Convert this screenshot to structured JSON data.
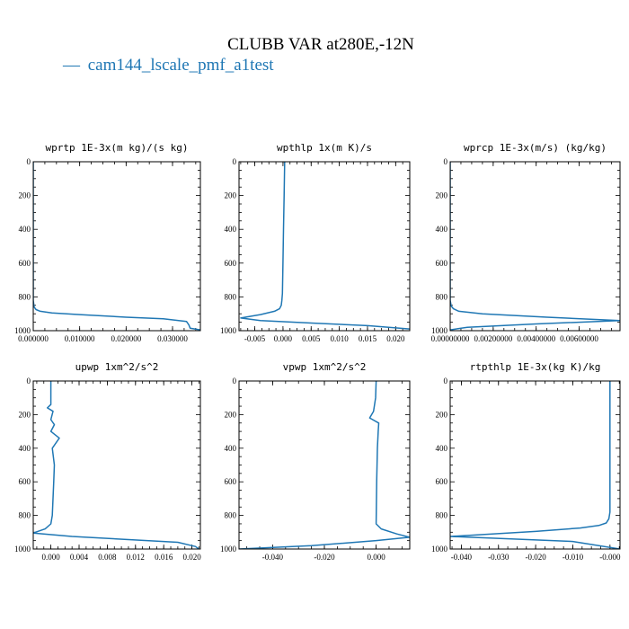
{
  "figure": {
    "title": "CLUBB VAR at280E,-12N",
    "legend": [
      {
        "label": "cam144_lscale_pmf_a1test",
        "line_symbol": "—",
        "color": "#1f77b4"
      }
    ]
  },
  "chart_data": [
    {
      "type": "line",
      "title": "wprtp  1E-3x(m kg)/(s kg)",
      "xlim": [
        0,
        0.036
      ],
      "ylim": [
        1000,
        0
      ],
      "xticks": [
        0,
        0.01,
        0.02,
        0.03
      ],
      "xtick_labels": [
        "0.000000",
        "0.010000",
        "0.020000",
        "0.030000"
      ],
      "yticks": [
        0,
        200,
        400,
        600,
        800,
        1000
      ],
      "ytick_labels": [
        "0",
        "200",
        "400",
        "600",
        "800",
        "1000"
      ],
      "series": [
        {
          "color": "#1f77b4",
          "x": [
            0,
            0,
            0,
            0.0002,
            0.0006,
            0.0015,
            0.004,
            0.01,
            0.02,
            0.028,
            0.033,
            0.0335,
            0.0338,
            0.036
          ],
          "y": [
            0,
            500,
            820,
            860,
            875,
            885,
            895,
            905,
            920,
            930,
            945,
            965,
            985,
            995
          ]
        }
      ]
    },
    {
      "type": "line",
      "title": "wpthlp  1x(m K)/s",
      "xlim": [
        -0.0078,
        0.0225
      ],
      "ylim": [
        1000,
        0
      ],
      "xticks": [
        -0.005,
        0,
        0.005,
        0.01,
        0.015,
        0.02
      ],
      "xtick_labels": [
        "-0.005",
        "0.000",
        "0.005",
        "0.010",
        "0.015",
        "0.020"
      ],
      "yticks": [
        0,
        200,
        400,
        600,
        800,
        1000
      ],
      "ytick_labels": [
        "0",
        "200",
        "400",
        "600",
        "800",
        "1000"
      ],
      "series": [
        {
          "color": "#1f77b4",
          "x": [
            0.0003,
            0.0002,
            0.0001,
            0,
            -0.0001,
            -0.0002,
            -0.0003,
            -0.0006,
            -0.0015,
            -0.004,
            -0.0075,
            -0.004,
            0.005,
            0.015,
            0.0225
          ],
          "y": [
            0,
            200,
            400,
            600,
            780,
            820,
            850,
            870,
            885,
            905,
            925,
            940,
            955,
            970,
            990
          ]
        }
      ]
    },
    {
      "type": "line",
      "title": "wprcp  1E-3x(m/s) (kg/kg)",
      "xlim": [
        0,
        0.0079
      ],
      "ylim": [
        1000,
        0
      ],
      "xticks": [
        0,
        0.002,
        0.004,
        0.006
      ],
      "xtick_labels": [
        "0.00000000",
        "0.00200000",
        "0.00400000",
        "0.00600000"
      ],
      "yticks": [
        0,
        200,
        400,
        600,
        800,
        1000
      ],
      "ytick_labels": [
        "0",
        "200",
        "400",
        "600",
        "800",
        "1000"
      ],
      "series": [
        {
          "color": "#1f77b4",
          "x": [
            0,
            0,
            0,
            5e-05,
            0.00015,
            0.0004,
            0.0015,
            0.0045,
            0.0079,
            0.004,
            0.0008,
            0
          ],
          "y": [
            0,
            500,
            820,
            855,
            870,
            885,
            900,
            920,
            940,
            960,
            980,
            995
          ]
        }
      ]
    },
    {
      "type": "line",
      "title": "upwp  1xm^2/s^2",
      "xlim": [
        -0.0025,
        0.0212
      ],
      "ylim": [
        1000,
        0
      ],
      "xticks": [
        0,
        0.004,
        0.008,
        0.012,
        0.016,
        0.02
      ],
      "xtick_labels": [
        "0.000",
        "0.004",
        "0.008",
        "0.012",
        "0.016",
        "0.020"
      ],
      "yticks": [
        0,
        200,
        400,
        600,
        800,
        1000
      ],
      "ytick_labels": [
        "0",
        "200",
        "400",
        "600",
        "800",
        "1000"
      ],
      "series": [
        {
          "color": "#1f77b4",
          "x": [
            0,
            0,
            -0.0005,
            0.0003,
            0,
            0.0005,
            0,
            0.0012,
            0.0002,
            0.0005,
            0.0004,
            0.0003,
            0.0002,
            0,
            -0.0008,
            -0.0025,
            0.003,
            0.018,
            0.0205,
            0.021
          ],
          "y": [
            0,
            140,
            160,
            180,
            230,
            260,
            300,
            340,
            400,
            500,
            600,
            700,
            800,
            850,
            880,
            905,
            925,
            960,
            985,
            1000
          ]
        }
      ]
    },
    {
      "type": "line",
      "title": "vpwp  1xm^2/s^2",
      "xlim": [
        -0.053,
        0.013
      ],
      "ylim": [
        1000,
        0
      ],
      "xticks": [
        -0.04,
        -0.02,
        0
      ],
      "xtick_labels": [
        "-0.040",
        "-0.020",
        "0.000"
      ],
      "yticks": [
        0,
        200,
        400,
        600,
        800,
        1000
      ],
      "ytick_labels": [
        "0",
        "200",
        "400",
        "600",
        "800",
        "1000"
      ],
      "series": [
        {
          "color": "#1f77b4",
          "x": [
            0,
            -0.0002,
            -0.001,
            -0.0025,
            0.001,
            0.0008,
            0.0005,
            0.0002,
            0,
            0.002,
            0.008,
            0.013,
            0,
            -0.025,
            -0.053
          ],
          "y": [
            0,
            100,
            180,
            220,
            250,
            300,
            400,
            600,
            850,
            880,
            910,
            930,
            950,
            980,
            1000
          ]
        }
      ]
    },
    {
      "type": "line",
      "title": "rtpthlp  1E-3x(kg K)/kg",
      "xlim": [
        -0.043,
        0.0027
      ],
      "ylim": [
        1000,
        0
      ],
      "xticks": [
        -0.04,
        -0.03,
        -0.02,
        -0.01,
        0
      ],
      "xtick_labels": [
        "-0.040",
        "-0.030",
        "-0.020",
        "-0.010",
        "-0.000"
      ],
      "yticks": [
        0,
        200,
        400,
        600,
        800,
        1000
      ],
      "ytick_labels": [
        "0",
        "200",
        "400",
        "600",
        "800",
        "1000"
      ],
      "series": [
        {
          "color": "#1f77b4",
          "x": [
            0,
            0,
            0,
            -0.0003,
            -0.001,
            -0.003,
            -0.008,
            -0.02,
            -0.043,
            -0.01,
            0.0027
          ],
          "y": [
            0,
            400,
            780,
            820,
            845,
            860,
            875,
            895,
            925,
            955,
            1000
          ]
        }
      ]
    }
  ]
}
